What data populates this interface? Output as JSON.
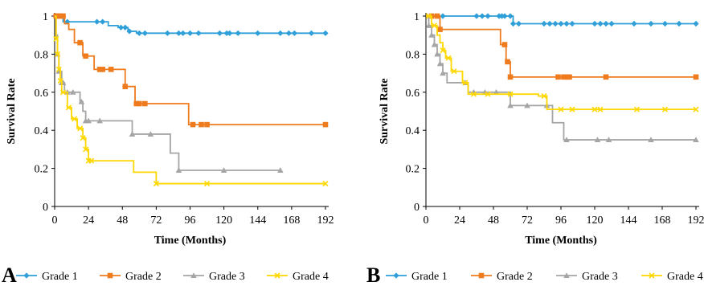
{
  "chart_data": [
    {
      "type": "line",
      "panel_label": "A",
      "xlabel": "Time (Months)",
      "ylabel": "Survival Rate",
      "xlim": [
        0,
        192
      ],
      "ylim": [
        0,
        1
      ],
      "xticks": [
        "0",
        "24",
        "48",
        "72",
        "96",
        "120",
        "144",
        "168",
        "192"
      ],
      "yticks": [
        "0",
        "0.2",
        "0.4",
        "0.6",
        "0.8",
        "1"
      ],
      "grid": false,
      "legend_position": "bottom",
      "series": [
        {
          "name": "Grade 1",
          "color": "#2e9fd8",
          "marker": "diamond",
          "steps": [
            [
              0,
              1
            ],
            [
              6,
              0.97
            ],
            [
              38,
              0.95
            ],
            [
              45,
              0.94
            ],
            [
              52,
              0.92
            ],
            [
              58,
              0.91
            ],
            [
              192,
              0.91
            ]
          ],
          "censor": [
            4,
            9,
            30,
            34,
            47,
            50,
            53,
            60,
            64,
            80,
            88,
            91,
            96,
            102,
            117,
            122,
            124,
            130,
            144,
            160,
            166,
            170,
            182,
            192
          ]
        },
        {
          "name": "Grade 2",
          "color": "#ef7b1f",
          "marker": "square",
          "steps": [
            [
              0,
              1
            ],
            [
              4,
              1
            ],
            [
              7,
              0.96
            ],
            [
              10,
              0.93
            ],
            [
              14,
              0.86
            ],
            [
              20,
              0.79
            ],
            [
              28,
              0.72
            ],
            [
              50,
              0.63
            ],
            [
              57,
              0.54
            ],
            [
              95,
              0.43
            ],
            [
              192,
              0.43
            ]
          ],
          "censor": [
            1,
            2,
            4,
            6,
            18,
            22,
            32,
            34,
            40,
            50,
            58,
            60,
            64,
            98,
            104,
            108,
            192
          ]
        },
        {
          "name": "Grade 3",
          "color": "#a5a5a5",
          "marker": "triangle",
          "steps": [
            [
              0,
              1
            ],
            [
              1,
              0.9
            ],
            [
              2,
              0.8
            ],
            [
              3,
              0.71
            ],
            [
              5,
              0.65
            ],
            [
              7,
              0.6
            ],
            [
              18,
              0.55
            ],
            [
              20,
              0.5
            ],
            [
              22,
              0.45
            ],
            [
              55,
              0.38
            ],
            [
              82,
              0.28
            ],
            [
              88,
              0.19
            ],
            [
              160,
              0.19
            ]
          ],
          "censor": [
            2,
            3,
            5,
            6,
            9,
            13,
            19,
            22,
            24,
            32,
            55,
            68,
            88,
            120,
            160
          ]
        },
        {
          "name": "Grade 4",
          "color": "#ffd700",
          "marker": "x",
          "steps": [
            [
              0,
              1
            ],
            [
              1,
              0.88
            ],
            [
              2,
              0.8
            ],
            [
              3,
              0.72
            ],
            [
              4,
              0.66
            ],
            [
              5,
              0.6
            ],
            [
              9,
              0.52
            ],
            [
              12,
              0.46
            ],
            [
              16,
              0.41
            ],
            [
              20,
              0.36
            ],
            [
              22,
              0.3
            ],
            [
              24,
              0.24
            ],
            [
              56,
              0.18
            ],
            [
              72,
              0.12
            ],
            [
              192,
              0.12
            ]
          ],
          "censor": [
            1,
            2,
            3,
            4,
            6,
            10,
            14,
            18,
            20,
            22,
            24,
            26,
            72,
            108,
            192
          ]
        }
      ]
    },
    {
      "type": "line",
      "panel_label": "B",
      "xlabel": "Time (Months)",
      "ylabel": "Survival Rate",
      "xlim": [
        0,
        192
      ],
      "ylim": [
        0,
        1
      ],
      "xticks": [
        "0",
        "24",
        "48",
        "72",
        "96",
        "120",
        "144",
        "168",
        "192"
      ],
      "yticks": [
        "0",
        "0.2",
        "0.4",
        "0.6",
        "0.8",
        "1"
      ],
      "grid": false,
      "legend_position": "bottom",
      "series": [
        {
          "name": "Grade 1",
          "color": "#2e9fd8",
          "marker": "diamond",
          "steps": [
            [
              0,
              1
            ],
            [
              62,
              0.96
            ],
            [
              192,
              0.96
            ]
          ],
          "censor": [
            4,
            12,
            36,
            40,
            44,
            52,
            54,
            56,
            60,
            62,
            66,
            84,
            88,
            92,
            96,
            100,
            104,
            120,
            124,
            128,
            132,
            148,
            160,
            170,
            180,
            192
          ]
        },
        {
          "name": "Grade 2",
          "color": "#ef7b1f",
          "marker": "square",
          "steps": [
            [
              0,
              1
            ],
            [
              10,
              0.93
            ],
            [
              53,
              0.85
            ],
            [
              57,
              0.76
            ],
            [
              60,
              0.68
            ],
            [
              192,
              0.68
            ]
          ],
          "censor": [
            4,
            8,
            10,
            56,
            58,
            60,
            94,
            98,
            100,
            102,
            128,
            192
          ]
        },
        {
          "name": "Grade 3",
          "color": "#a5a5a5",
          "marker": "triangle",
          "steps": [
            [
              0,
              1
            ],
            [
              2,
              0.95
            ],
            [
              4,
              0.9
            ],
            [
              6,
              0.85
            ],
            [
              8,
              0.8
            ],
            [
              10,
              0.75
            ],
            [
              12,
              0.7
            ],
            [
              15,
              0.65
            ],
            [
              30,
              0.6
            ],
            [
              60,
              0.53
            ],
            [
              90,
              0.44
            ],
            [
              98,
              0.35
            ],
            [
              192,
              0.35
            ]
          ],
          "censor": [
            2,
            4,
            6,
            8,
            10,
            12,
            28,
            34,
            42,
            50,
            60,
            72,
            86,
            100,
            122,
            130,
            160,
            192
          ]
        },
        {
          "name": "Grade 4",
          "color": "#ffd700",
          "marker": "x",
          "steps": [
            [
              0,
              1
            ],
            [
              4,
              0.95
            ],
            [
              8,
              0.9
            ],
            [
              10,
              0.86
            ],
            [
              12,
              0.82
            ],
            [
              14,
              0.78
            ],
            [
              18,
              0.71
            ],
            [
              26,
              0.65
            ],
            [
              30,
              0.59
            ],
            [
              80,
              0.58
            ],
            [
              86,
              0.51
            ],
            [
              192,
              0.51
            ]
          ],
          "censor": [
            2,
            6,
            12,
            16,
            20,
            28,
            34,
            44,
            60,
            84,
            96,
            104,
            120,
            124,
            150,
            170,
            192
          ]
        }
      ]
    }
  ]
}
